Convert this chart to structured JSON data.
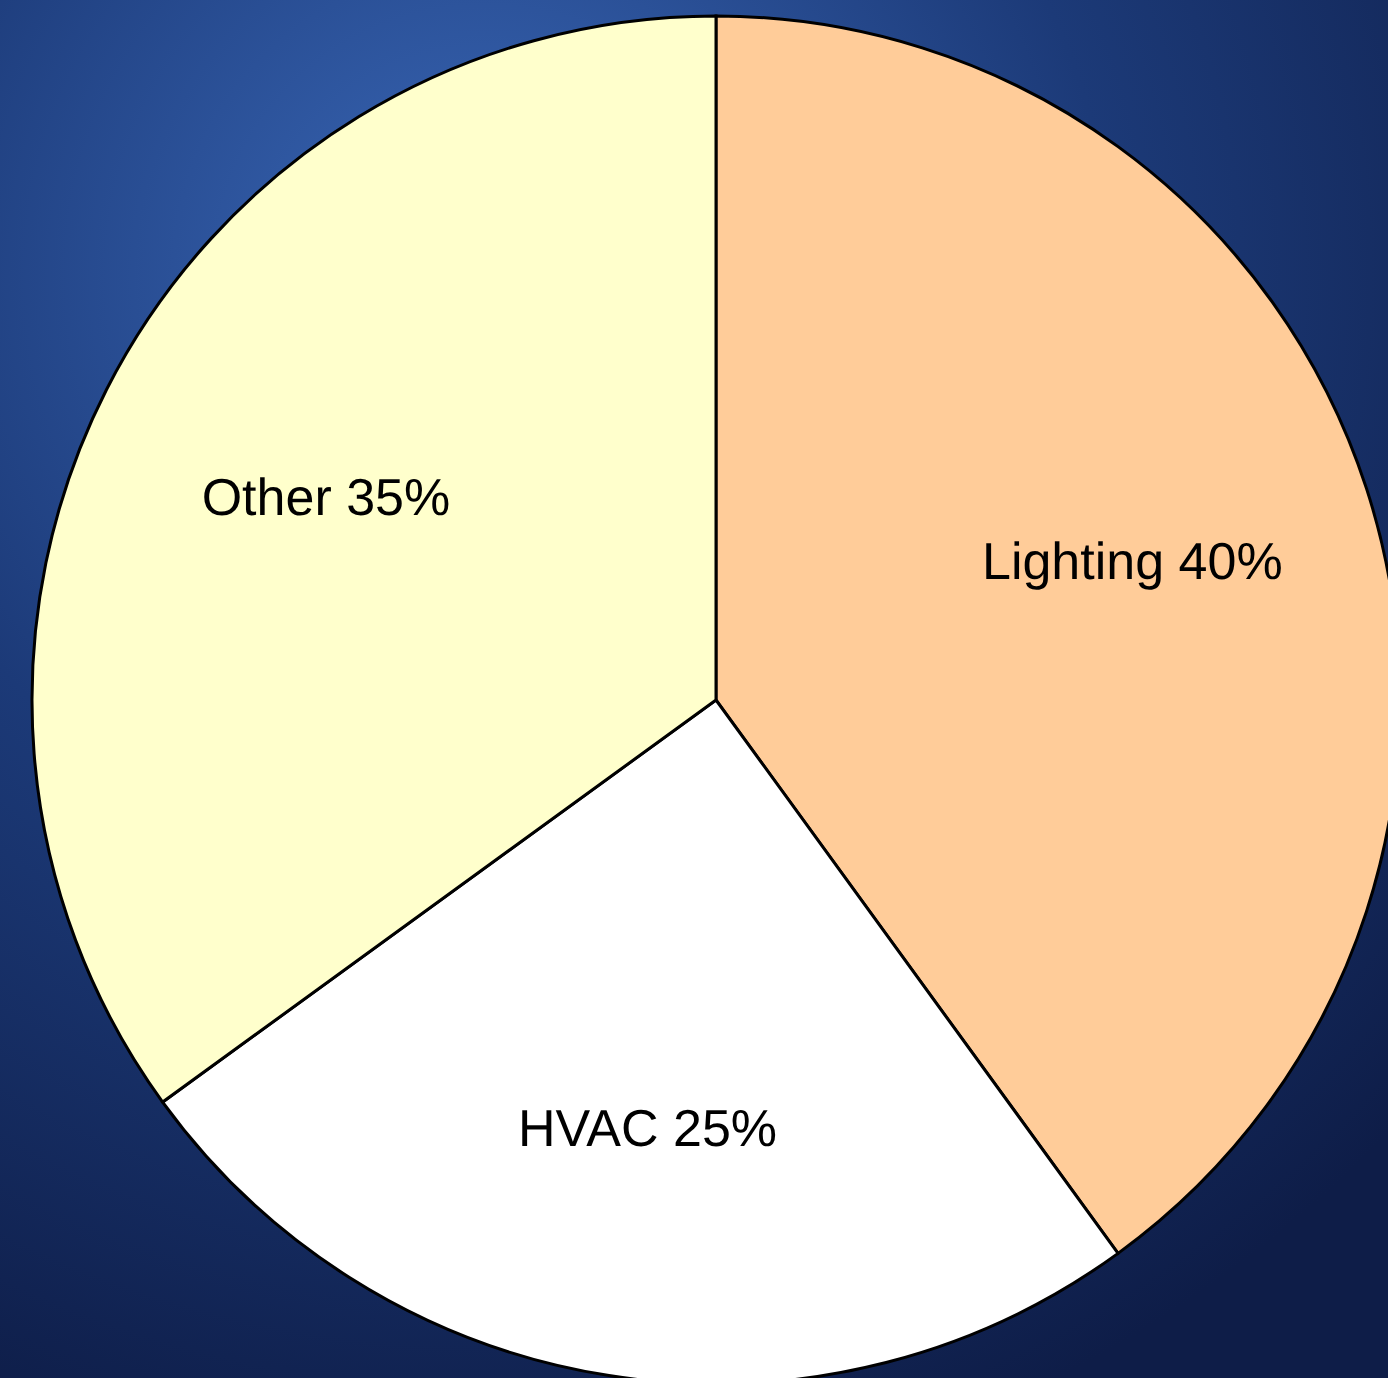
{
  "chart_data": {
    "type": "pie",
    "categories": [
      "Lighting",
      "HVAC",
      "Other"
    ],
    "values": [
      40,
      25,
      35
    ],
    "value_labels": [
      "40%",
      "25%",
      "35%"
    ],
    "colors": [
      "#ffcc99",
      "#ffffff",
      "#ffffcc"
    ]
  }
}
